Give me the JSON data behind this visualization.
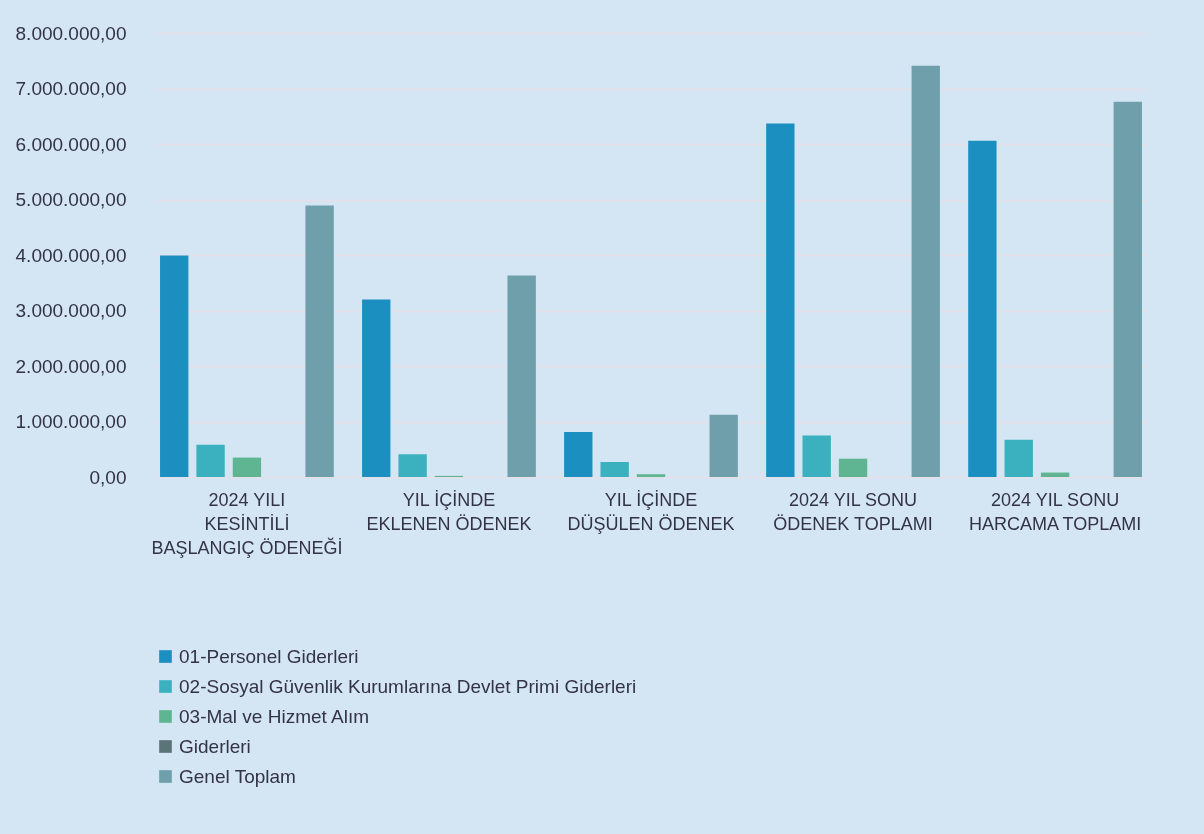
{
  "chart_data": {
    "type": "bar",
    "categories": [
      "2024 YILI KESİNTİLİ BAŞLANGIÇ ÖDENEĞİ",
      "YIL İÇİNDE EKLENEN ÖDENEK",
      "YIL İÇİNDE DÜŞÜLEN ÖDENEK",
      "2024 YIL SONU ÖDENEK TOPLAMI",
      "2024 YIL SONU HARCAMA TOPLAMI"
    ],
    "series": [
      {
        "name": "01-Personel Giderleri",
        "color": "#1a8fc0",
        "values": [
          3990000,
          3200000,
          810000,
          6370000,
          6060000
        ]
      },
      {
        "name": "02-Sosyal Güvenlik Kurumlarına Devlet Primi Giderleri",
        "color": "#3bb0bf",
        "values": [
          580000,
          410000,
          270000,
          750000,
          670000
        ]
      },
      {
        "name": "03-Mal ve Hizmet Alım",
        "color": "#5fb592",
        "values": [
          350000,
          20000,
          50000,
          330000,
          80000
        ]
      },
      {
        "name": "Giderleri",
        "color": "#5a7478",
        "values": [
          0,
          0,
          0,
          0,
          0
        ]
      },
      {
        "name": "Genel Toplam",
        "color": "#6e9fab",
        "values": [
          4890000,
          3630000,
          1120000,
          7410000,
          6760000
        ]
      }
    ],
    "ylim": [
      0,
      8000000
    ],
    "yticks": [
      {
        "value": 0,
        "label": "0,00"
      },
      {
        "value": 1000000,
        "label": "1.000.000,00"
      },
      {
        "value": 2000000,
        "label": "2.000.000,00"
      },
      {
        "value": 3000000,
        "label": "3.000.000,00"
      },
      {
        "value": 4000000,
        "label": "4.000.000,00"
      },
      {
        "value": 5000000,
        "label": "5.000.000,00"
      },
      {
        "value": 6000000,
        "label": "6.000.000,00"
      },
      {
        "value": 7000000,
        "label": "7.000.000,00"
      },
      {
        "value": 8000000,
        "label": "8.000.000,00"
      }
    ],
    "grid": "y",
    "legend": "bottom"
  }
}
